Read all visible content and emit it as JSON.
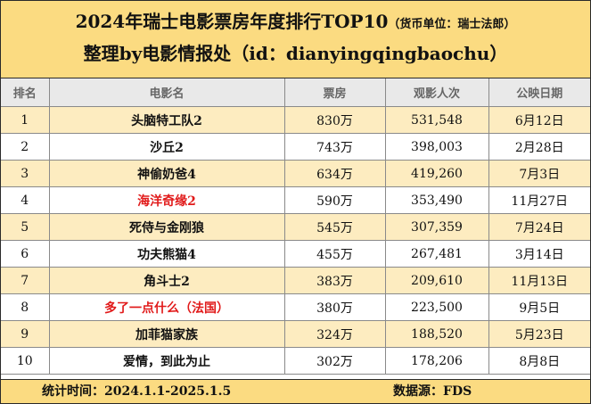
{
  "header": {
    "title_main": "2024年瑞士电影票房年度排行TOP10",
    "title_sub": "（货币单位：瑞士法郎）",
    "subtitle": "整理by电影情报处（id：dianyingqingbaochu）"
  },
  "columns": [
    "排名",
    "电影名",
    "票房",
    "观影人次",
    "公映日期"
  ],
  "rows": [
    {
      "rank": "1",
      "title": "头脑特工队2",
      "box_office": "830万",
      "admissions": "531,548",
      "release": "6月12日",
      "highlight": false
    },
    {
      "rank": "2",
      "title": "沙丘2",
      "box_office": "743万",
      "admissions": "398,003",
      "release": "2月28日",
      "highlight": false
    },
    {
      "rank": "3",
      "title": "神偷奶爸4",
      "box_office": "634万",
      "admissions": "419,260",
      "release": "7月3日",
      "highlight": false
    },
    {
      "rank": "4",
      "title": "海洋奇缘2",
      "box_office": "590万",
      "admissions": "353,490",
      "release": "11月27日",
      "highlight": true
    },
    {
      "rank": "5",
      "title": "死侍与金刚狼",
      "box_office": "545万",
      "admissions": "307,359",
      "release": "7月24日",
      "highlight": false
    },
    {
      "rank": "6",
      "title": "功夫熊猫4",
      "box_office": "455万",
      "admissions": "267,481",
      "release": "3月14日",
      "highlight": false
    },
    {
      "rank": "7",
      "title": "角斗士2",
      "box_office": "383万",
      "admissions": "209,610",
      "release": "11月13日",
      "highlight": false
    },
    {
      "rank": "8",
      "title": "多了一点什么（法国）",
      "box_office": "380万",
      "admissions": "223,500",
      "release": "9月5日",
      "highlight": true
    },
    {
      "rank": "9",
      "title": "加菲猫家族",
      "box_office": "324万",
      "admissions": "188,520",
      "release": "5月23日",
      "highlight": false
    },
    {
      "rank": "10",
      "title": "爱情，到此为止",
      "box_office": "302万",
      "admissions": "178,206",
      "release": "8月8日",
      "highlight": false
    }
  ],
  "footer": {
    "period": "统计时间：2024.1.1-2025.1.5",
    "source": "数据源：FDS"
  },
  "colors": {
    "header_bg": "#fbdb81",
    "odd_row_bg": "#fdecc0",
    "highlight_text": "#e11a1a"
  }
}
